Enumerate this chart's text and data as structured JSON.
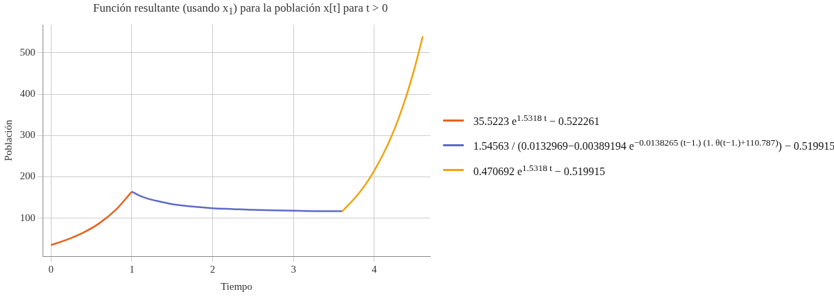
{
  "chart_data": {
    "type": "line",
    "title": "Función resultante (usando x$_{1}$) para la población x[t] para t > 0",
    "xlabel": "Tiempo",
    "ylabel": "Población",
    "xlim": [
      -0.1,
      4.69
    ],
    "ylim": [
      8,
      568
    ],
    "xticks": [
      0,
      1,
      2,
      3,
      4
    ],
    "yticks": [
      100,
      200,
      300,
      400,
      500
    ],
    "grid": true,
    "legend": "right",
    "marker": "none",
    "line_style": "solid",
    "series": [
      {
        "name": "35.5223 e$^{1.5318 t}$ − 0.522261",
        "color": "#e8611a",
        "x": [
          0,
          0.2,
          0.4,
          0.6,
          0.8,
          1
        ],
        "values": [
          35,
          48,
          65,
          88,
          120,
          164
        ]
      },
      {
        "name": "1.54563 / (0.0132969−0.00389194 e$^{−0.0138265 (t−1.) (1. θ(t−1.)+110.787)}$) − 0.519915",
        "color": "#5e6ac6",
        "x": [
          1,
          1.1,
          1.2,
          1.35,
          1.5,
          1.75,
          2,
          2.25,
          2.5,
          2.75,
          3,
          3.3,
          3.6
        ],
        "values": [
          164,
          154,
          147,
          140,
          134,
          128,
          124,
          122,
          120,
          119,
          118,
          117,
          117
        ]
      },
      {
        "name": "0.470692 e$^{1.5318 t}$ − 0.519915",
        "color": "#f0a30a",
        "x": [
          3.6,
          3.7,
          3.8,
          3.9,
          4,
          4.1,
          4.2,
          4.3,
          4.4,
          4.5,
          4.6
        ],
        "values": [
          116,
          136,
          158,
          184,
          215,
          251,
          292,
          341,
          398,
          464,
          540
        ]
      }
    ]
  }
}
